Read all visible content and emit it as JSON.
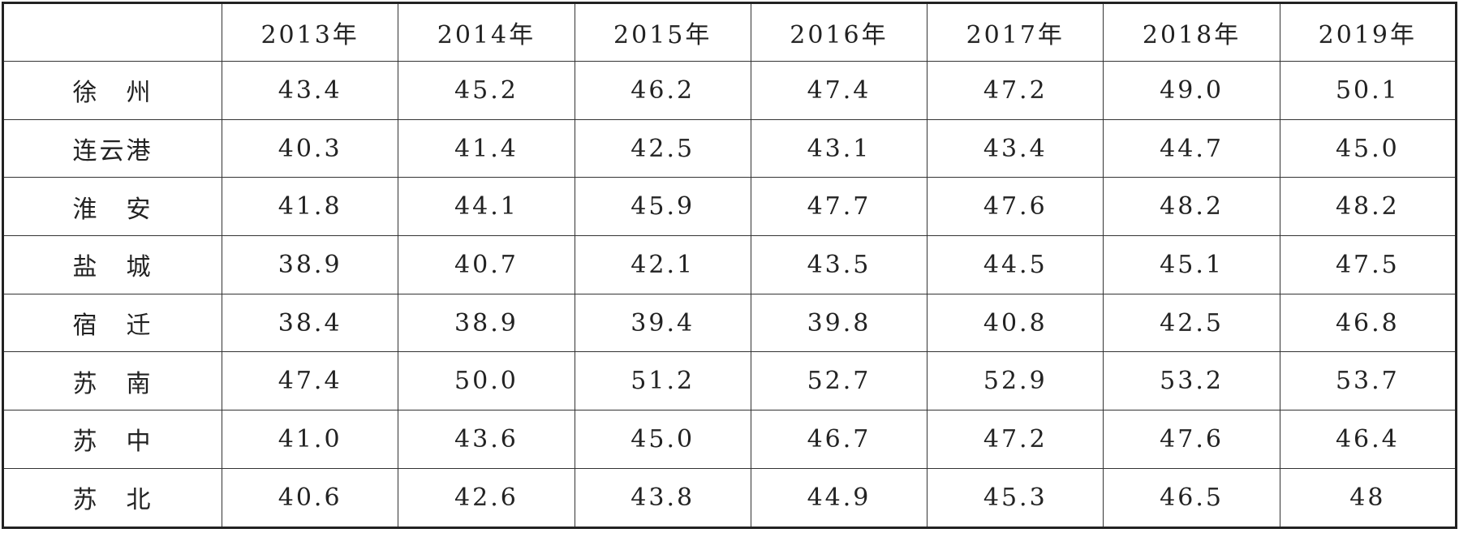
{
  "table": {
    "header": [
      "",
      "2013年",
      "2014年",
      "2015年",
      "2016年",
      "2017年",
      "2018年",
      "2019年"
    ],
    "rows": [
      [
        "徐　州",
        "43.4",
        "45.2",
        "46.2",
        "47.4",
        "47.2",
        "49.0",
        "50.1"
      ],
      [
        "连云港",
        "40.3",
        "41.4",
        "42.5",
        "43.1",
        "43.4",
        "44.7",
        "45.0"
      ],
      [
        "淮　安",
        "41.8",
        "44.1",
        "45.9",
        "47.7",
        "47.6",
        "48.2",
        "48.2"
      ],
      [
        "盐　城",
        "38.9",
        "40.7",
        "42.1",
        "43.5",
        "44.5",
        "45.1",
        "47.5"
      ],
      [
        "宿　迁",
        "38.4",
        "38.9",
        "39.4",
        "39.8",
        "40.8",
        "42.5",
        "46.8"
      ],
      [
        "苏　南",
        "47.4",
        "50.0",
        "51.2",
        "52.7",
        "52.9",
        "53.2",
        "53.7"
      ],
      [
        "苏　中",
        "41.0",
        "43.6",
        "45.0",
        "46.7",
        "47.2",
        "47.6",
        "46.4"
      ],
      [
        "苏　北",
        "40.6",
        "42.6",
        "43.8",
        "44.9",
        "45.3",
        "46.5",
        "48"
      ]
    ]
  }
}
